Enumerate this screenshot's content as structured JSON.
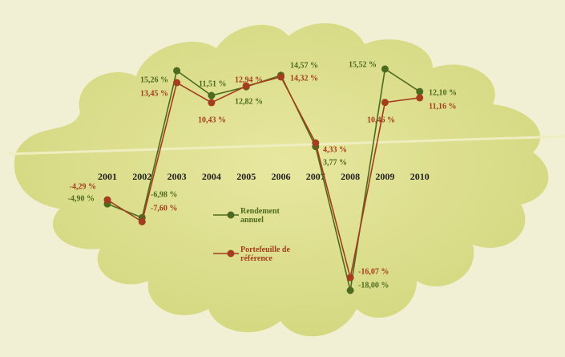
{
  "chart_data": {
    "type": "line",
    "categories": [
      "2001",
      "2002",
      "2003",
      "2004",
      "2005",
      "2006",
      "2007",
      "2008",
      "2009",
      "2010"
    ],
    "series": [
      {
        "name": "Rendement annuel",
        "color": "#4d6b1f",
        "values": [
          -4.9,
          -6.98,
          15.26,
          11.51,
          12.82,
          14.57,
          3.77,
          -18.0,
          15.52,
          12.1
        ],
        "value_labels": [
          "-4,90 %",
          "-6,98 %",
          "15,26 %",
          "11,51 %",
          "12,82 %",
          "14,57 %",
          "3,77 %",
          "-18,00 %",
          "15,52 %",
          "12,10 %"
        ]
      },
      {
        "name": "Portefeuille de référence",
        "color": "#a33d1e",
        "values": [
          -4.29,
          -7.6,
          13.45,
          10.43,
          12.94,
          14.32,
          4.33,
          -16.07,
          10.46,
          11.16
        ],
        "value_labels": [
          "-4,29 %",
          "-7,60 %",
          "13,45 %",
          "10,43 %",
          "12,94 %",
          "14,32 %",
          "4,33 %",
          "-16,07 %",
          "10,46 %",
          "11,16 %"
        ]
      }
    ]
  }
}
